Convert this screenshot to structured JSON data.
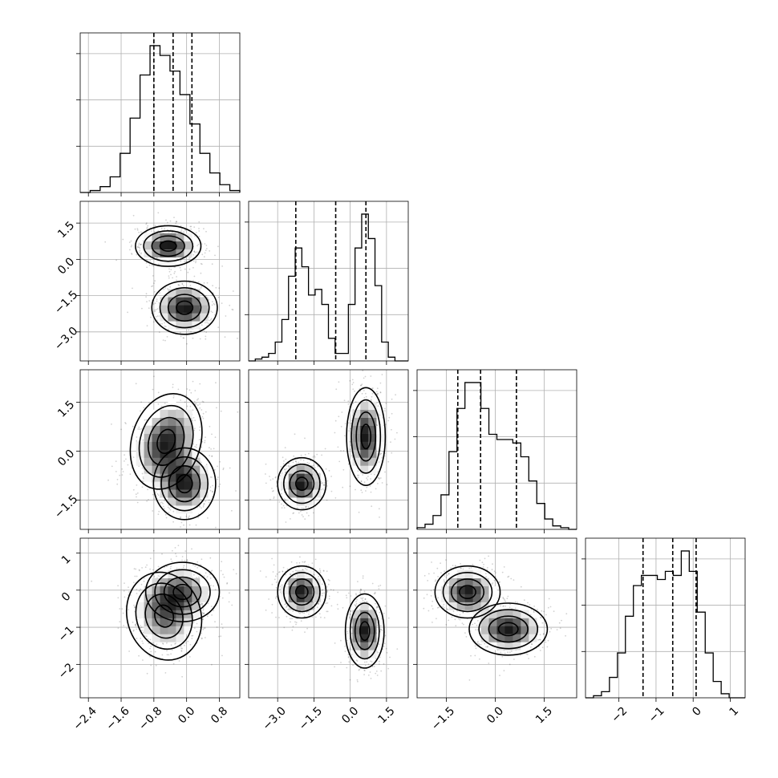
{
  "chart_data": {
    "type": "corner",
    "dimensions": 4,
    "quantiles": [
      0.16,
      0.5,
      0.84
    ],
    "grid": true,
    "ranges": [
      [
        -2.6,
        1.3
      ],
      [
        -4.2,
        2.4
      ],
      [
        -2.4,
        2.5
      ],
      [
        -2.9,
        1.4
      ]
    ],
    "ticks": [
      [
        -2.4,
        -1.6,
        -0.8,
        0.0,
        0.8
      ],
      [
        -3.0,
        -1.5,
        0.0,
        1.5
      ],
      [
        -1.5,
        0.0,
        1.5
      ],
      [
        -2,
        -1,
        0,
        1
      ]
    ],
    "tick_labels": [
      [
        "−2.4",
        "−1.6",
        "−0.8",
        "0.0",
        "0.8"
      ],
      [
        "−3.0",
        "−1.5",
        "0.0",
        "1.5"
      ],
      [
        "−1.5",
        "0.0",
        "1.5"
      ],
      [
        "−2",
        "−1",
        "0",
        "1"
      ]
    ],
    "quantile_values": [
      [
        -0.8,
        -0.33,
        0.13
      ],
      [
        -2.25,
        -0.6,
        0.65
      ],
      [
        -1.15,
        -0.45,
        0.65
      ],
      [
        -1.35,
        -0.55,
        0.08
      ]
    ],
    "histograms": [
      {
        "dim": 0,
        "counts": [
          0,
          1,
          3,
          8,
          20,
          38,
          60,
          75,
          70,
          62,
          50,
          35,
          20,
          10,
          4,
          1
        ]
      },
      {
        "dim": 1,
        "counts": [
          0,
          1,
          2,
          4,
          10,
          22,
          45,
          60,
          50,
          35,
          38,
          30,
          12,
          4,
          4,
          30,
          60,
          78,
          65,
          40,
          10,
          2,
          0,
          0
        ]
      },
      {
        "dim": 2,
        "counts": [
          1,
          3,
          8,
          20,
          45,
          70,
          85,
          85,
          70,
          55,
          52,
          52,
          50,
          42,
          28,
          15,
          6,
          2,
          1,
          0
        ]
      },
      {
        "dim": 3,
        "counts": [
          0,
          1,
          3,
          10,
          22,
          40,
          55,
          60,
          60,
          58,
          62,
          60,
          72,
          62,
          42,
          22,
          8,
          2,
          0,
          0
        ]
      }
    ],
    "blobs": [
      {
        "pair": [
          0,
          1
        ],
        "centers": [
          [
            -0.45,
            0.55
          ],
          [
            -0.05,
            -2.0
          ]
        ],
        "widths": [
          [
            0.4,
            0.42
          ],
          [
            0.4,
            0.55
          ]
        ],
        "angles": [
          0,
          0
        ],
        "weights": [
          0.5,
          0.5
        ]
      },
      {
        "pair": [
          0,
          2
        ],
        "centers": [
          [
            -0.5,
            0.3
          ],
          [
            -0.05,
            -1.0
          ]
        ],
        "widths": [
          [
            0.42,
            0.75
          ],
          [
            0.38,
            0.55
          ]
        ],
        "angles": [
          -0.3,
          0
        ],
        "weights": [
          0.5,
          0.5
        ]
      },
      {
        "pair": [
          1,
          2
        ],
        "centers": [
          [
            -2.0,
            -1.0
          ],
          [
            0.65,
            0.45
          ]
        ],
        "widths": [
          [
            0.5,
            0.4
          ],
          [
            0.4,
            0.75
          ]
        ],
        "angles": [
          0,
          0
        ],
        "weights": [
          0.5,
          0.5
        ]
      },
      {
        "pair": [
          0,
          3
        ],
        "centers": [
          [
            -0.55,
            -0.7
          ],
          [
            -0.1,
            -0.05
          ]
        ],
        "widths": [
          [
            0.45,
            0.6
          ],
          [
            0.45,
            0.4
          ]
        ],
        "angles": [
          0.3,
          0
        ],
        "weights": [
          0.5,
          0.5
        ]
      },
      {
        "pair": [
          1,
          3
        ],
        "centers": [
          [
            -2.0,
            -0.05
          ],
          [
            0.6,
            -1.1
          ]
        ],
        "widths": [
          [
            0.5,
            0.35
          ],
          [
            0.4,
            0.5
          ]
        ],
        "angles": [
          0,
          0
        ],
        "weights": [
          0.5,
          0.5
        ]
      },
      {
        "pair": [
          2,
          3
        ],
        "centers": [
          [
            -0.85,
            -0.05
          ],
          [
            0.4,
            -1.05
          ]
        ],
        "widths": [
          [
            0.5,
            0.35
          ],
          [
            0.6,
            0.35
          ]
        ],
        "angles": [
          0,
          0
        ],
        "weights": [
          0.5,
          0.5
        ]
      }
    ],
    "contour_levels_sigma": [
      0.5,
      1.0,
      1.5,
      2.0
    ]
  }
}
